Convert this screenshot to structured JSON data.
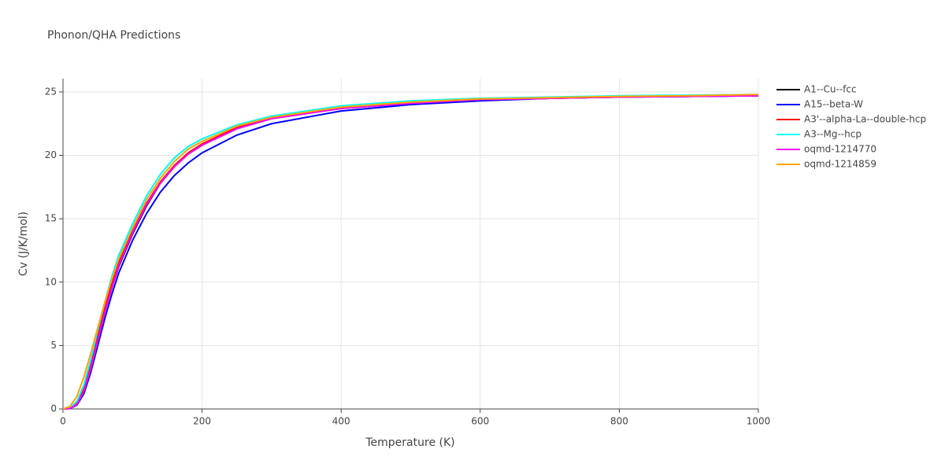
{
  "chart_data": {
    "type": "line",
    "title": "Phonon/QHA Predictions",
    "x_label": "Temperature (K)",
    "y_label": "Cv (J/K/mol)",
    "x": [
      0,
      10,
      20,
      30,
      40,
      50,
      60,
      70,
      80,
      100,
      120,
      140,
      160,
      180,
      200,
      250,
      300,
      400,
      500,
      600,
      700,
      800,
      900,
      1000
    ],
    "series": [
      {
        "name": "A1--Cu--fcc",
        "color": "#000000",
        "values": [
          0,
          0.05,
          0.4,
          1.5,
          3.3,
          5.5,
          7.6,
          9.5,
          11.2,
          13.8,
          16.0,
          17.8,
          19.1,
          20.1,
          20.8,
          22.1,
          22.9,
          23.7,
          24.1,
          24.4,
          24.5,
          24.6,
          24.65,
          24.7
        ]
      },
      {
        "name": "A15--beta-W",
        "color": "#0000ff",
        "values": [
          0,
          0.03,
          0.3,
          1.2,
          2.9,
          5.0,
          7.1,
          9.0,
          10.7,
          13.3,
          15.4,
          17.1,
          18.4,
          19.4,
          20.2,
          21.6,
          22.5,
          23.5,
          24.0,
          24.3,
          24.5,
          24.6,
          24.65,
          24.7
        ]
      },
      {
        "name": "A3'--alpha-La--double-hcp",
        "color": "#ff0000",
        "values": [
          0,
          0.05,
          0.45,
          1.6,
          3.5,
          5.8,
          7.9,
          9.8,
          11.5,
          14.0,
          16.2,
          17.9,
          19.2,
          20.2,
          20.9,
          22.2,
          22.9,
          23.7,
          24.2,
          24.4,
          24.5,
          24.6,
          24.7,
          24.75
        ]
      },
      {
        "name": "A3--Mg--hcp",
        "color": "#00ffff",
        "values": [
          0,
          0.08,
          0.6,
          1.9,
          3.9,
          6.2,
          8.4,
          10.4,
          12.1,
          14.6,
          16.8,
          18.5,
          19.8,
          20.7,
          21.3,
          22.4,
          23.1,
          23.9,
          24.3,
          24.5,
          24.6,
          24.7,
          24.75,
          24.8
        ]
      },
      {
        "name": "oqmd-1214770",
        "color": "#ff00ff",
        "values": [
          0,
          0.04,
          0.35,
          1.4,
          3.2,
          5.4,
          7.6,
          9.5,
          11.3,
          13.9,
          16.1,
          17.8,
          19.1,
          20.1,
          20.8,
          22.1,
          22.9,
          23.7,
          24.1,
          24.4,
          24.5,
          24.6,
          24.65,
          24.7
        ]
      },
      {
        "name": "oqmd-1214859",
        "color": "#ffa500",
        "values": [
          0,
          0.2,
          1.0,
          2.5,
          4.4,
          6.4,
          8.4,
          10.2,
          11.8,
          14.3,
          16.5,
          18.2,
          19.5,
          20.5,
          21.1,
          22.3,
          23.0,
          23.8,
          24.2,
          24.45,
          24.55,
          24.65,
          24.7,
          24.8
        ]
      }
    ],
    "xlim": [
      0,
      1000
    ],
    "xticks": [
      0,
      200,
      400,
      600,
      800,
      1000
    ],
    "ylim": [
      0,
      26.05
    ],
    "yticks": [
      0,
      5,
      10,
      15,
      20,
      25
    ],
    "grid": true,
    "legend": "right"
  }
}
